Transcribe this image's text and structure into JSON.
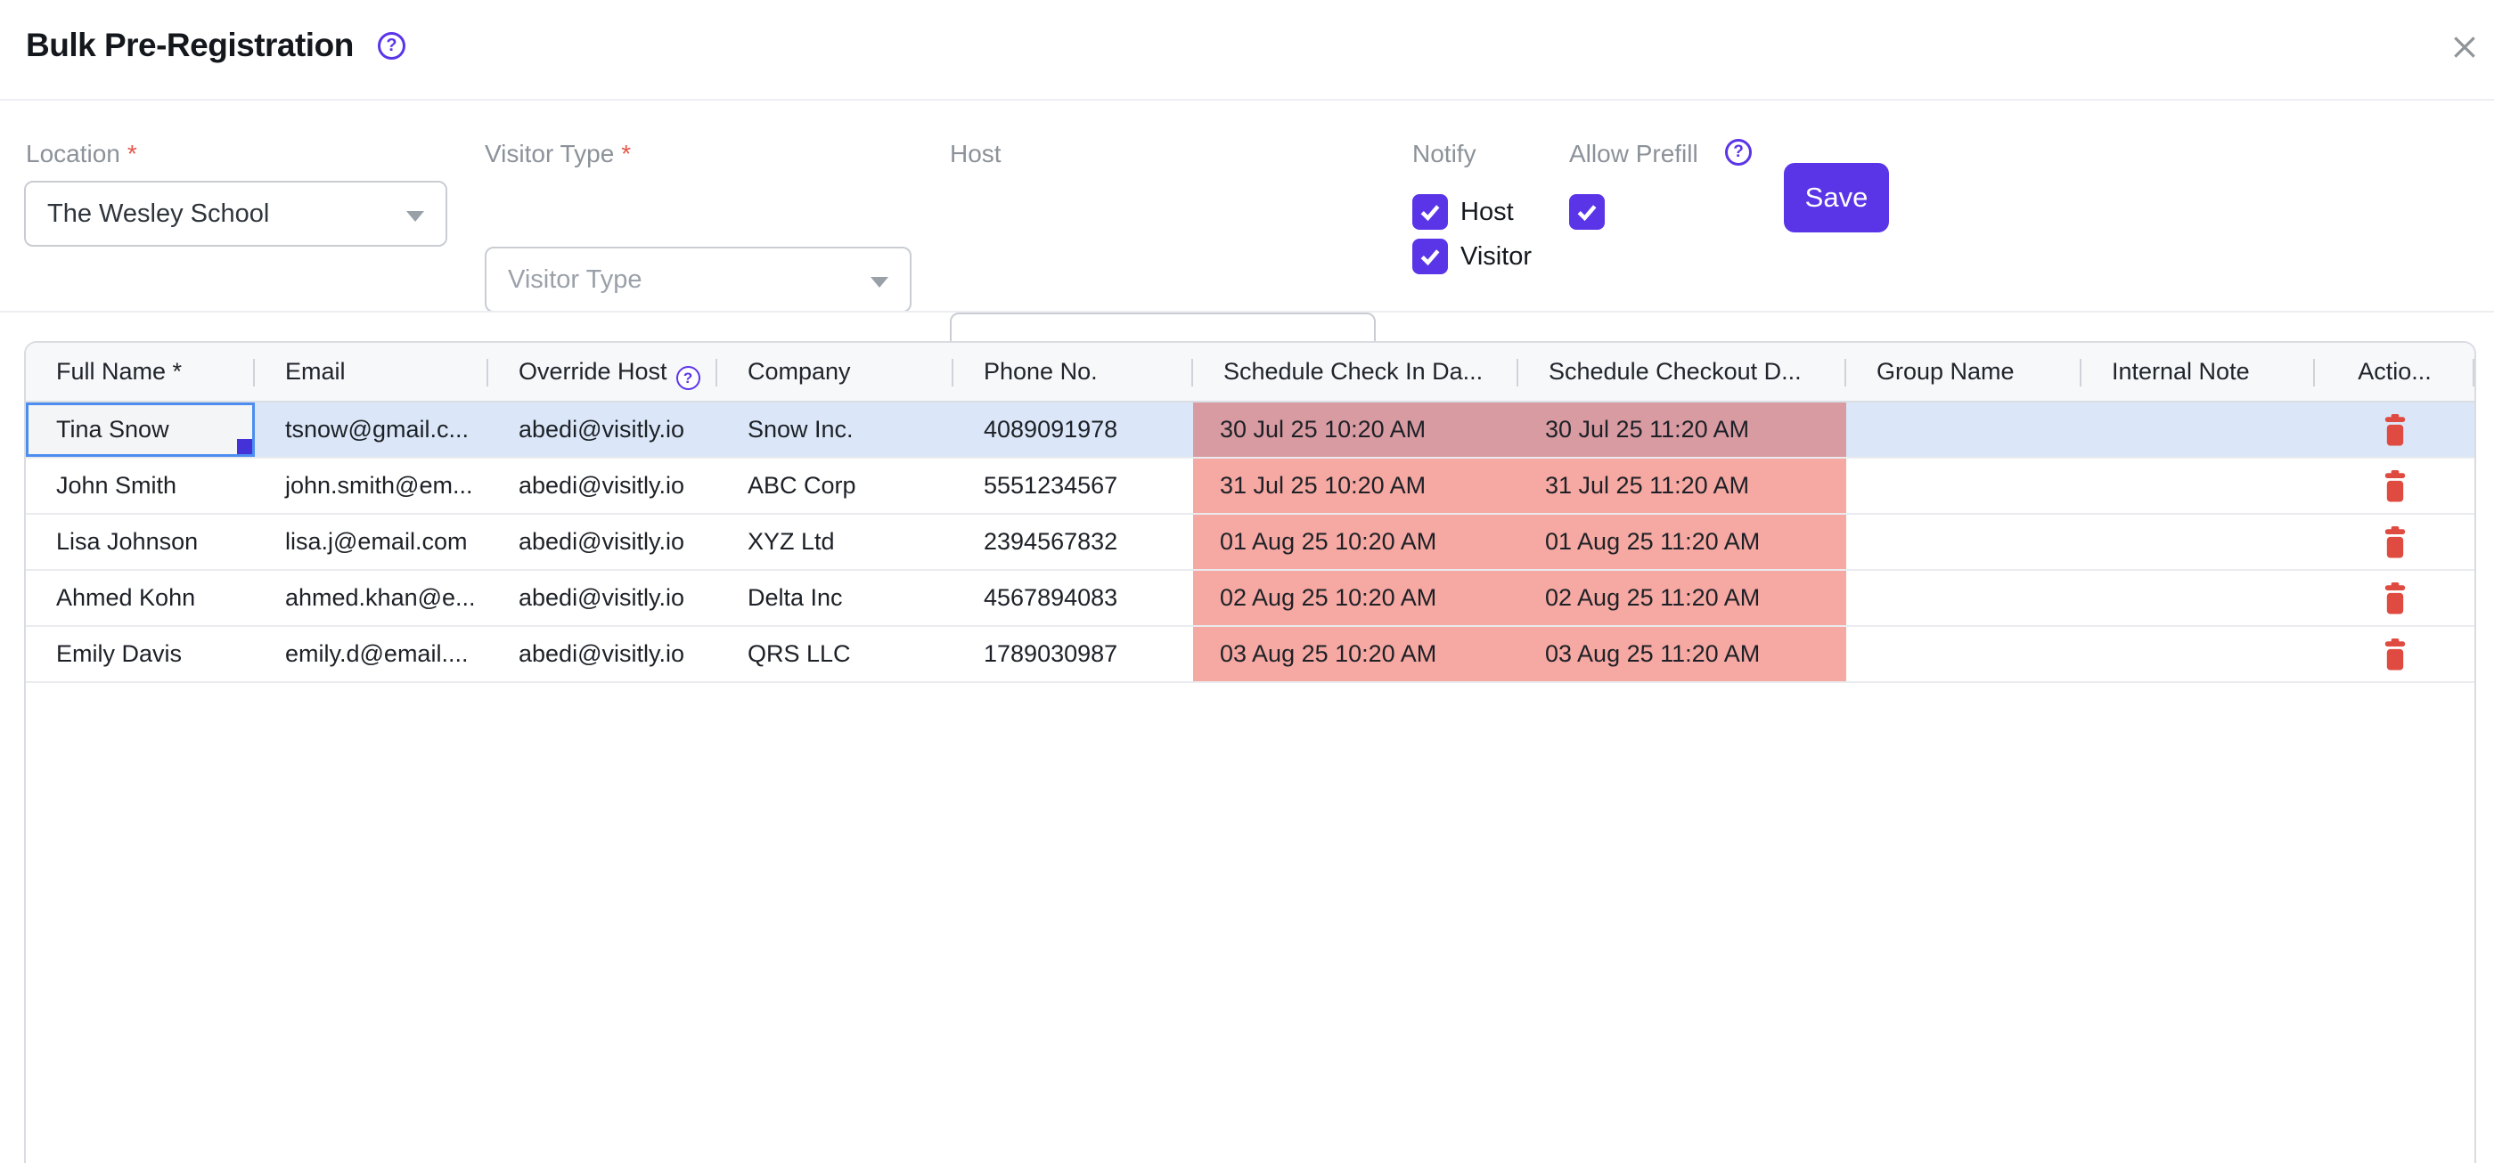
{
  "header": {
    "title": "Bulk Pre-Registration",
    "help_icon": "?",
    "close_icon": "x"
  },
  "form": {
    "location": {
      "label": "Location",
      "required": "*",
      "value": "The Wesley School"
    },
    "visitor_type": {
      "label": "Visitor Type",
      "required": "*",
      "placeholder": "Visitor Type",
      "value": ""
    },
    "host": {
      "label": "Host",
      "value": "",
      "placeholder": ""
    },
    "notify": {
      "label": "Notify",
      "options": [
        {
          "label": "Host",
          "checked": true
        },
        {
          "label": "Visitor",
          "checked": true
        }
      ]
    },
    "allow_prefill": {
      "label": "Allow Prefill",
      "checked": true,
      "help_icon": "?"
    },
    "save_label": "Save"
  },
  "table": {
    "columns": [
      {
        "key": "full_name",
        "label": "Full Name *"
      },
      {
        "key": "email",
        "label": "Email"
      },
      {
        "key": "override_host",
        "label": "Override Host",
        "help": true
      },
      {
        "key": "company",
        "label": "Company"
      },
      {
        "key": "phone",
        "label": "Phone No."
      },
      {
        "key": "check_in",
        "label": "Schedule Check In Da...",
        "error": true
      },
      {
        "key": "check_out",
        "label": "Schedule Checkout D...",
        "error": true
      },
      {
        "key": "group_name",
        "label": "Group Name"
      },
      {
        "key": "internal_note",
        "label": "Internal Note"
      },
      {
        "key": "actions",
        "label": "Actio...",
        "action": true
      }
    ],
    "rows": [
      {
        "full_name": "Tina Snow",
        "email": "tsnow@gmail.c...",
        "override_host": "abedi@visitly.io",
        "company": "Snow Inc.",
        "phone": "4089091978",
        "check_in": "30 Jul 25 10:20 AM",
        "check_out": "30 Jul 25 11:20 AM",
        "group_name": "",
        "internal_note": ""
      },
      {
        "full_name": "John Smith",
        "email": "john.smith@em...",
        "override_host": "abedi@visitly.io",
        "company": "ABC Corp",
        "phone": "5551234567",
        "check_in": "31 Jul 25 10:20 AM",
        "check_out": "31 Jul 25 11:20 AM",
        "group_name": "",
        "internal_note": ""
      },
      {
        "full_name": "Lisa Johnson",
        "email": "lisa.j@email.com",
        "override_host": "abedi@visitly.io",
        "company": "XYZ Ltd",
        "phone": "2394567832",
        "check_in": "01 Aug 25 10:20 AM",
        "check_out": "01 Aug 25 11:20 AM",
        "group_name": "",
        "internal_note": ""
      },
      {
        "full_name": "Ahmed Kohn",
        "email": "ahmed.khan@e...",
        "override_host": "abedi@visitly.io",
        "company": "Delta Inc",
        "phone": "4567894083",
        "check_in": "02 Aug 25 10:20 AM",
        "check_out": "02 Aug 25 11:20 AM",
        "group_name": "",
        "internal_note": ""
      },
      {
        "full_name": "Emily Davis",
        "email": "emily.d@email....",
        "override_host": "abedi@visitly.io",
        "company": "QRS LLC",
        "phone": "1789030987",
        "check_in": "03 Aug 25 10:20 AM",
        "check_out": "03 Aug 25 11:20 AM",
        "group_name": "",
        "internal_note": ""
      }
    ],
    "selection": {
      "row_index": 0,
      "column": "full_name"
    }
  },
  "colors": {
    "accent_purple": "#5a35e8",
    "selected_row_blue": "#dbe7f8",
    "error_cell_pink": "#f6a8a2",
    "error_cell_selected": "#d99ba2",
    "delete_red": "#df4b41",
    "selection_border_blue": "#4d8df0",
    "fill_handle_indigo": "#4431d8",
    "label_gray": "#8c9299"
  }
}
